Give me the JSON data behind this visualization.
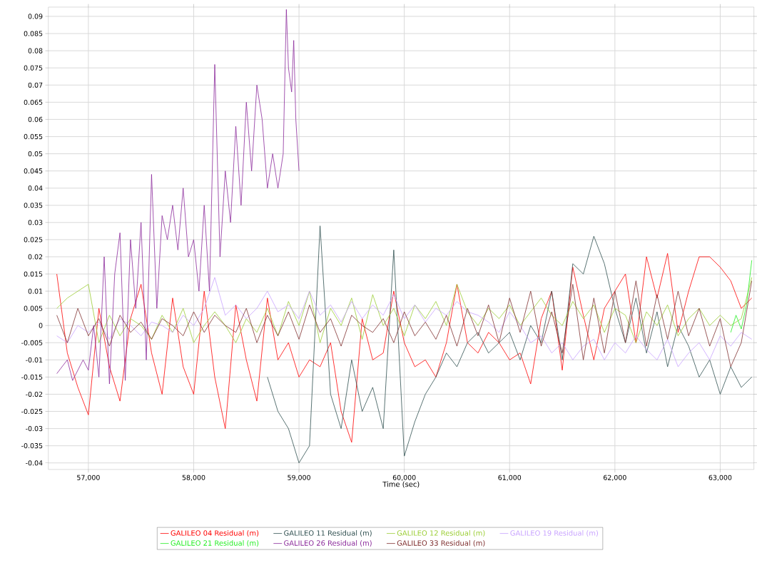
{
  "chart_data": {
    "type": "line",
    "xlabel": "Time (sec)",
    "xlim": [
      56620,
      63320
    ],
    "ylim": [
      -0.0419,
      0.0927
    ],
    "xticks": [
      {
        "value": 57000,
        "label": "57,000"
      },
      {
        "value": 58000,
        "label": "58,000"
      },
      {
        "value": 59000,
        "label": "59,000"
      },
      {
        "value": 60000,
        "label": "60,000"
      },
      {
        "value": 61000,
        "label": "61,000"
      },
      {
        "value": 62000,
        "label": "62,000"
      },
      {
        "value": 63000,
        "label": "63,000"
      }
    ],
    "yticks": [
      -0.04,
      -0.035,
      -0.03,
      -0.025,
      -0.02,
      -0.015,
      -0.01,
      -0.005,
      0,
      0.005,
      0.01,
      0.015,
      0.02,
      0.025,
      0.03,
      0.035,
      0.04,
      0.045,
      0.05,
      0.055,
      0.06,
      0.065,
      0.07,
      0.075,
      0.08,
      0.085,
      0.09
    ],
    "grid": true,
    "legend": "bottom",
    "x": [
      56700,
      56800,
      56900,
      57000,
      57100,
      57200,
      57300,
      57400,
      57500,
      57600,
      57700,
      57800,
      57900,
      58000,
      58100,
      58200,
      58300,
      58400,
      58500,
      58600,
      58700,
      58800,
      58900,
      59000,
      59100,
      59200,
      59300,
      59400,
      59500,
      59600,
      59700,
      59800,
      59900,
      60000,
      60100,
      60200,
      60300,
      60400,
      60500,
      60600,
      60700,
      60800,
      60900,
      61000,
      61100,
      61200,
      61300,
      61400,
      61500,
      61600,
      61700,
      61800,
      61900,
      62000,
      62100,
      62200,
      62300,
      62400,
      62500,
      62600,
      62700,
      62800,
      62900,
      63000,
      63100,
      63200,
      63300
    ],
    "series": [
      {
        "name": "GALILEO 04 Residual (m)",
        "color": "#ff0000",
        "values": [
          0.015,
          -0.008,
          -0.018,
          -0.026,
          0.005,
          -0.012,
          -0.022,
          0.002,
          0.012,
          -0.008,
          -0.02,
          0.008,
          -0.012,
          -0.02,
          0.01,
          -0.015,
          -0.03,
          0.006,
          -0.01,
          -0.022,
          0.008,
          -0.01,
          -0.005,
          -0.015,
          -0.01,
          -0.012,
          -0.005,
          -0.025,
          -0.034,
          0.002,
          -0.01,
          -0.008,
          0.01,
          -0.005,
          -0.012,
          -0.01,
          -0.015,
          -0.005,
          0.012,
          -0.005,
          -0.008,
          -0.002,
          -0.005,
          -0.01,
          -0.008,
          -0.017,
          0.002,
          0.01,
          -0.013,
          0.017,
          0.003,
          -0.01,
          0.005,
          0.01,
          0.015,
          -0.005,
          0.02,
          0.008,
          0.021,
          -0.002,
          0.01,
          0.02,
          0.02,
          0.017,
          0.013,
          0.005,
          0.008
        ]
      },
      {
        "name": "GALILEO 11 Residual (m)",
        "color": "#2f4f4f",
        "x": [
          58700,
          58800,
          58900,
          59000,
          59100,
          59200,
          59300,
          59400,
          59500,
          59600,
          59700,
          59800,
          59900,
          60000,
          60100,
          60200,
          60300,
          60400,
          60500,
          60600,
          60700,
          60800,
          60900,
          61000,
          61100,
          61200,
          61300,
          61400,
          61500,
          61600,
          61700,
          61800,
          61900,
          62000,
          62100,
          62200,
          62300,
          62400,
          62500,
          62600,
          62700,
          62800,
          62900,
          63000,
          63100,
          63200,
          63300
        ],
        "values": [
          -0.015,
          -0.025,
          -0.03,
          -0.04,
          -0.035,
          0.029,
          -0.02,
          -0.03,
          -0.01,
          -0.025,
          -0.018,
          -0.03,
          0.022,
          -0.038,
          -0.028,
          -0.02,
          -0.015,
          -0.008,
          -0.012,
          -0.005,
          -0.002,
          -0.008,
          -0.005,
          -0.002,
          -0.01,
          0.0,
          -0.005,
          0.01,
          -0.01,
          0.018,
          0.015,
          0.026,
          0.018,
          0.005,
          -0.005,
          0.008,
          -0.008,
          0.004,
          -0.012,
          0.0,
          -0.006,
          -0.015,
          -0.01,
          -0.02,
          -0.012,
          -0.018,
          -0.015
        ]
      },
      {
        "name": "GALILEO 12 Residual (m)",
        "color": "#9acd32",
        "values": [
          0.005,
          0.008,
          0.01,
          0.012,
          -0.005,
          0.003,
          -0.003,
          0.002,
          0.0,
          -0.004,
          0.003,
          -0.002,
          0.005,
          -0.005,
          0.0,
          0.004,
          0.0,
          -0.005,
          0.002,
          -0.002,
          0.005,
          -0.003,
          0.007,
          0.0,
          0.01,
          -0.005,
          0.005,
          0.0,
          0.008,
          -0.004,
          0.009,
          0.0,
          0.005,
          -0.003,
          0.006,
          0.002,
          0.007,
          0.0,
          0.012,
          0.004,
          0.0,
          0.005,
          0.002,
          0.006,
          0.0,
          0.004,
          0.008,
          0.003,
          0.0,
          0.007,
          0.002,
          0.006,
          -0.002,
          0.005,
          0.003,
          -0.005,
          0.004,
          0.0,
          0.006,
          -0.003,
          0.002,
          0.005,
          0.0,
          0.003,
          0.0,
          0.002,
          0.014
        ]
      },
      {
        "name": "GALILEO 19 Residual (m)",
        "color": "#c8a2ff",
        "values": [
          -0.003,
          -0.005,
          0.0,
          -0.002,
          0.001,
          -0.004,
          0.002,
          0.0,
          -0.003,
          0.001,
          0.0,
          -0.002,
          0.003,
          0.0,
          0.005,
          0.014,
          0.003,
          0.006,
          0.002,
          0.005,
          0.01,
          0.004,
          0.006,
          0.002,
          0.01,
          0.003,
          0.006,
          0.001,
          0.007,
          0.002,
          0.006,
          0.003,
          0.009,
          0.002,
          0.006,
          0.001,
          0.005,
          0.003,
          0.007,
          0.004,
          0.003,
          0.001,
          -0.002,
          0.004,
          0.0,
          -0.005,
          -0.003,
          -0.008,
          -0.005,
          -0.01,
          -0.006,
          -0.004,
          -0.01,
          -0.005,
          -0.008,
          -0.003,
          -0.007,
          -0.01,
          -0.004,
          -0.012,
          -0.008,
          -0.005,
          -0.01,
          -0.003,
          -0.006,
          -0.002,
          -0.004
        ]
      },
      {
        "name": "GALILEO 21 Residual (m)",
        "color": "#22ee22",
        "x": [
          63100,
          63150,
          63200,
          63250,
          63300
        ],
        "values": [
          -0.002,
          0.003,
          -0.001,
          0.006,
          0.019
        ]
      },
      {
        "name": "GALILEO 26 Residual (m)",
        "color": "#8b2a9b",
        "x": [
          56700,
          56800,
          56850,
          56950,
          57000,
          57050,
          57100,
          57150,
          57200,
          57250,
          57300,
          57350,
          57400,
          57450,
          57500,
          57550,
          57600,
          57650,
          57700,
          57750,
          57800,
          57850,
          57900,
          57950,
          58000,
          58050,
          58100,
          58150,
          58200,
          58250,
          58300,
          58350,
          58400,
          58450,
          58500,
          58550,
          58600,
          58650,
          58700,
          58750,
          58800,
          58850,
          58880,
          58900,
          58930,
          58950,
          58970,
          59000
        ],
        "values": [
          -0.014,
          -0.01,
          -0.016,
          -0.01,
          -0.013,
          0.0,
          -0.015,
          0.02,
          -0.017,
          0.015,
          0.027,
          -0.016,
          0.025,
          0.005,
          0.03,
          -0.01,
          0.044,
          0.005,
          0.032,
          0.025,
          0.035,
          0.022,
          0.04,
          0.02,
          0.025,
          0.01,
          0.035,
          0.01,
          0.076,
          0.02,
          0.045,
          0.03,
          0.058,
          0.035,
          0.065,
          0.045,
          0.07,
          0.06,
          0.04,
          0.05,
          0.04,
          0.05,
          0.092,
          0.075,
          0.068,
          0.083,
          0.06,
          0.045
        ]
      },
      {
        "name": "GALILEO 33 Residual (m)",
        "color": "#7f2f2f",
        "values": [
          0.003,
          -0.005,
          0.005,
          -0.003,
          0.002,
          -0.006,
          0.003,
          -0.002,
          0.001,
          -0.004,
          0.002,
          0.0,
          -0.003,
          0.004,
          -0.002,
          0.003,
          0.0,
          -0.002,
          0.005,
          -0.005,
          0.003,
          -0.003,
          0.004,
          -0.004,
          0.006,
          -0.002,
          0.002,
          -0.006,
          0.003,
          0.0,
          -0.002,
          0.002,
          -0.005,
          0.004,
          -0.003,
          0.001,
          -0.004,
          0.003,
          -0.006,
          0.005,
          -0.003,
          0.006,
          -0.005,
          0.008,
          -0.002,
          0.01,
          -0.006,
          0.004,
          -0.008,
          0.012,
          -0.01,
          0.008,
          -0.008,
          0.01,
          -0.005,
          0.013,
          -0.006,
          0.009,
          -0.004,
          0.01,
          -0.003,
          0.005,
          -0.006,
          0.002,
          -0.012,
          -0.005,
          0.013
        ]
      }
    ]
  }
}
